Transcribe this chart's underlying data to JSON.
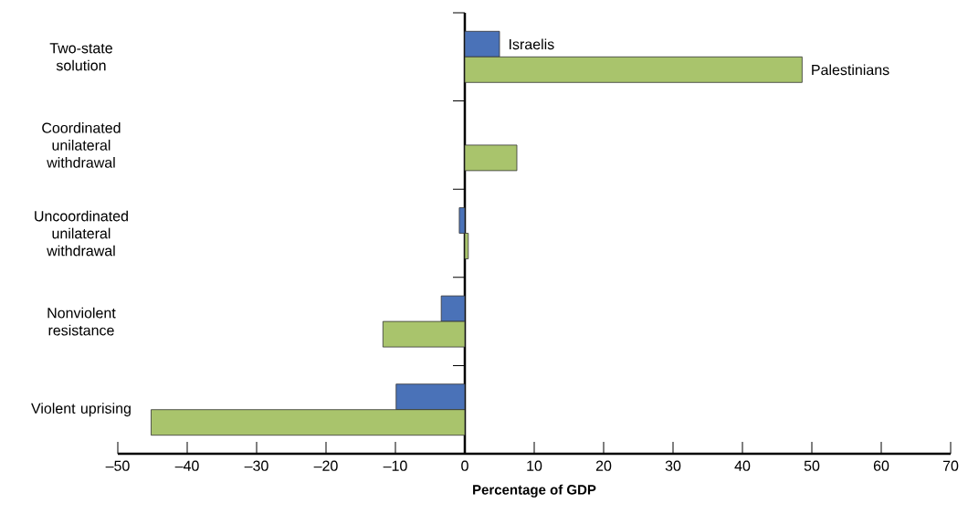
{
  "chart_data": {
    "type": "bar",
    "orientation": "horizontal",
    "xlabel": "Percentage of GDP",
    "categories": [
      "Two-state solution",
      "Coordinated unilateral withdrawal",
      "Uncoordinated unilateral withdrawal",
      "Nonviolent resistance",
      "Violent uprising"
    ],
    "series": [
      {
        "name": "Israelis",
        "color": "#4a72b8",
        "values": [
          5.0,
          null,
          -0.8,
          -3.4,
          -9.9
        ]
      },
      {
        "name": "Palestinians",
        "color": "#a9c46c",
        "values": [
          48.6,
          7.5,
          0.5,
          -11.8,
          -45.2
        ]
      }
    ],
    "xlim": [
      -50,
      70
    ],
    "xticks": [
      {
        "value": -50,
        "label": "–50"
      },
      {
        "value": -40,
        "label": "–40"
      },
      {
        "value": -30,
        "label": "–30"
      },
      {
        "value": -20,
        "label": "–20"
      },
      {
        "value": -10,
        "label": "–10"
      },
      0,
      10,
      20,
      30,
      40,
      50,
      60,
      70
    ],
    "legend": false
  }
}
